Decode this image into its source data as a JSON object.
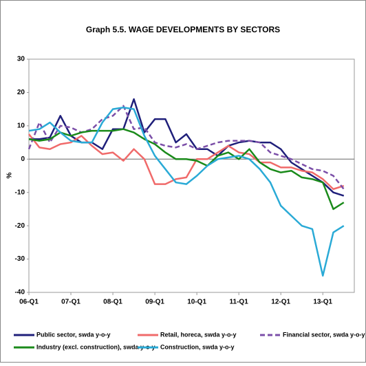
{
  "chart_data": {
    "type": "line",
    "title": "Graph 5.5. WAGE DEVELOPMENTS BY SECTORS",
    "y_label": "%",
    "categories": [
      "06-Q1",
      null,
      null,
      null,
      "07-Q1",
      null,
      null,
      null,
      "08-Q1",
      null,
      null,
      null,
      "09-Q1",
      null,
      null,
      null,
      "10-Q1",
      null,
      null,
      null,
      "11-Q1",
      null,
      null,
      null,
      "12-Q1",
      null,
      null,
      null,
      "13-Q1",
      null,
      null
    ],
    "ylim": [
      -40,
      30
    ],
    "yticks": [
      -40,
      -30,
      -20,
      -10,
      0,
      10,
      20,
      30
    ],
    "grid": false,
    "zero_line": true,
    "legend_position": "bottom",
    "series": [
      {
        "name": "Public sector, swda y-o-y",
        "color": "#1f1f7a",
        "dashed": false,
        "values": [
          6,
          6,
          6.5,
          13,
          7,
          5,
          5,
          3,
          9,
          9,
          18,
          8,
          12,
          12,
          5,
          7.5,
          3,
          3,
          1,
          4,
          5,
          5.5,
          5,
          5,
          3,
          -1,
          -3,
          -5,
          -7,
          -10,
          -11
        ]
      },
      {
        "name": "Retail, horeca, swda y-o-y",
        "color": "#f06a6a",
        "dashed": false,
        "values": [
          7.5,
          3.5,
          3,
          4.5,
          5,
          7,
          4,
          1.5,
          2,
          -0.5,
          3,
          0,
          -7.5,
          -7.5,
          -6,
          -5.5,
          0,
          0,
          2,
          4,
          2,
          1.5,
          -1,
          -1,
          -2.5,
          -2.5,
          -3.5,
          -4,
          -6,
          -9,
          -8
        ]
      },
      {
        "name": "Financial sector, swda y-o-y",
        "color": "#7b4fa8",
        "dashed": true,
        "values": [
          3,
          11,
          5,
          10,
          9.5,
          8,
          9,
          12,
          13,
          16,
          9,
          9.5,
          5,
          4,
          3.5,
          4.5,
          3,
          4,
          5,
          5.5,
          5.5,
          5.5,
          5,
          2,
          1,
          0,
          -1.5,
          -3,
          -3.5,
          -5,
          -9
        ]
      },
      {
        "name": "Industry (excl. construction), swda y-o-y",
        "color": "#1a8a1a",
        "dashed": false,
        "values": [
          6,
          5.5,
          6,
          8,
          7,
          8,
          8.5,
          8.5,
          8.5,
          9,
          8,
          6,
          4.5,
          2,
          0,
          0,
          -0.5,
          -2,
          1,
          2,
          0,
          3,
          -1,
          -3,
          -4,
          -3.5,
          -5.5,
          -6,
          -7,
          -15,
          -13
        ]
      },
      {
        "name": "Construction, swda y-o-y",
        "color": "#2aaad6",
        "dashed": false,
        "values": [
          8.5,
          9,
          11,
          8,
          5.5,
          5,
          5,
          11,
          15,
          15.5,
          15,
          7,
          1,
          -3,
          -7,
          -7.5,
          -5,
          -2,
          0,
          0.5,
          1,
          0,
          -3,
          -7,
          -14,
          -17,
          -20,
          -21,
          -35,
          -22,
          -20
        ]
      }
    ]
  }
}
